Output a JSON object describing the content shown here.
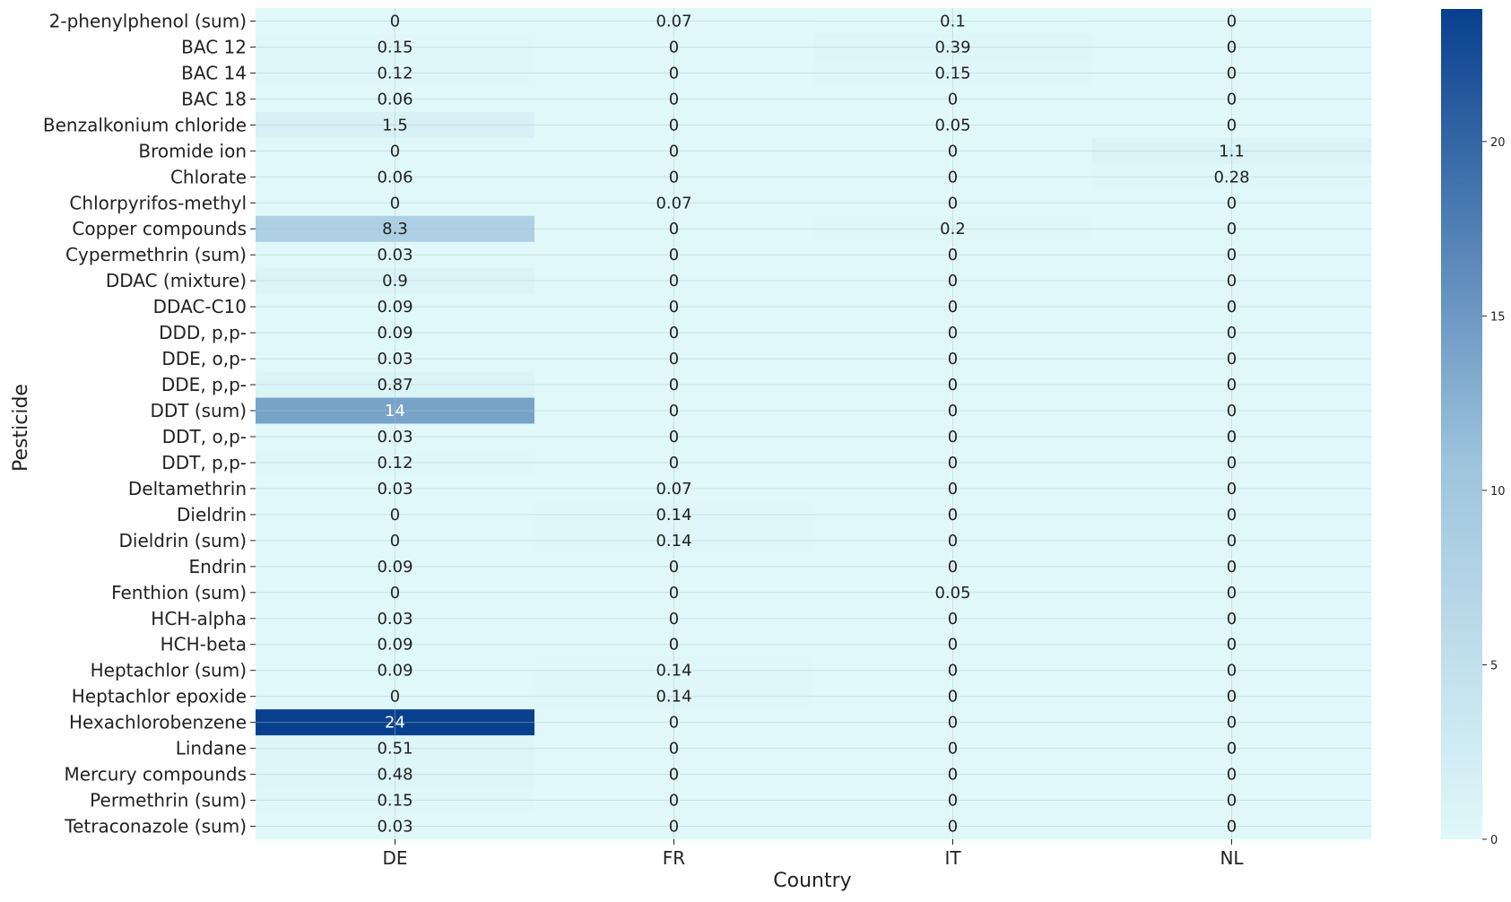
{
  "chart_data": {
    "type": "heatmap",
    "title": "",
    "xlabel": "Country",
    "ylabel": "Pesticide",
    "x_categories": [
      "DE",
      "FR",
      "IT",
      "NL"
    ],
    "y_categories": [
      "2-phenylphenol (sum)",
      "BAC 12",
      "BAC 14",
      "BAC 18",
      "Benzalkonium chloride",
      "Bromide ion",
      "Chlorate",
      "Chlorpyrifos-methyl",
      "Copper compounds",
      "Cypermethrin (sum)",
      "DDAC (mixture)",
      "DDAC-C10",
      "DDD, p,p-",
      "DDE, o,p-",
      "DDE, p,p-",
      "DDT (sum)",
      "DDT, o,p-",
      "DDT, p,p-",
      "Deltamethrin",
      "Dieldrin",
      "Dieldrin (sum)",
      "Endrin",
      "Fenthion (sum)",
      "HCH-alpha",
      "HCH-beta",
      "Heptachlor (sum)",
      "Heptachlor epoxide",
      "Hexachlorobenzene",
      "Lindane",
      "Mercury compounds",
      "Permethrin (sum)",
      "Tetraconazole (sum)"
    ],
    "values": [
      [
        "0",
        "0.07",
        "0.1",
        "0"
      ],
      [
        "0.15",
        "0",
        "0.39",
        "0"
      ],
      [
        "0.12",
        "0",
        "0.15",
        "0"
      ],
      [
        "0.06",
        "0",
        "0",
        "0"
      ],
      [
        "1.5",
        "0",
        "0.05",
        "0"
      ],
      [
        "0",
        "0",
        "0",
        "1.1"
      ],
      [
        "0.06",
        "0",
        "0",
        "0.28"
      ],
      [
        "0",
        "0.07",
        "0",
        "0"
      ],
      [
        "8.3",
        "0",
        "0.2",
        "0"
      ],
      [
        "0.03",
        "0",
        "0",
        "0"
      ],
      [
        "0.9",
        "0",
        "0",
        "0"
      ],
      [
        "0.09",
        "0",
        "0",
        "0"
      ],
      [
        "0.09",
        "0",
        "0",
        "0"
      ],
      [
        "0.03",
        "0",
        "0",
        "0"
      ],
      [
        "0.87",
        "0",
        "0",
        "0"
      ],
      [
        "14",
        "0",
        "0",
        "0"
      ],
      [
        "0.03",
        "0",
        "0",
        "0"
      ],
      [
        "0.12",
        "0",
        "0",
        "0"
      ],
      [
        "0.03",
        "0.07",
        "0",
        "0"
      ],
      [
        "0",
        "0.14",
        "0",
        "0"
      ],
      [
        "0",
        "0.14",
        "0",
        "0"
      ],
      [
        "0.09",
        "0",
        "0",
        "0"
      ],
      [
        "0",
        "0",
        "0.05",
        "0"
      ],
      [
        "0.03",
        "0",
        "0",
        "0"
      ],
      [
        "0.09",
        "0",
        "0",
        "0"
      ],
      [
        "0.09",
        "0.14",
        "0",
        "0"
      ],
      [
        "0",
        "0.14",
        "0",
        "0"
      ],
      [
        "24",
        "0",
        "0",
        "0"
      ],
      [
        "0.51",
        "0",
        "0",
        "0"
      ],
      [
        "0.48",
        "0",
        "0",
        "0"
      ],
      [
        "0.15",
        "0",
        "0",
        "0"
      ],
      [
        "0.03",
        "0",
        "0",
        "0"
      ]
    ],
    "colorbar": {
      "ticks": [
        "0",
        "5",
        "10",
        "15",
        "20"
      ],
      "range": [
        0,
        23.8
      ]
    },
    "colormap": {
      "low": "#e0f8fa",
      "mid": "#9ec4dd",
      "high": "#08408e"
    },
    "grid": true,
    "text_light": "#ffffff",
    "text_dark": "#222222"
  }
}
